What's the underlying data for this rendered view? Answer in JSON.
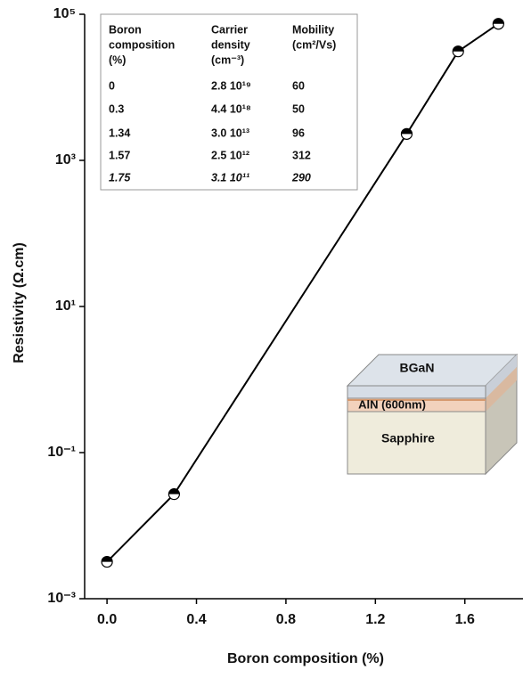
{
  "chart_data": {
    "type": "line",
    "x_label": "Boron composition (%)",
    "y_label": "Resistivity (Ω.cm)",
    "x": [
      0.0,
      0.3,
      1.34,
      1.57,
      1.75
    ],
    "values": [
      0.0032,
      0.027,
      2300,
      31000,
      74000
    ],
    "color": "#000000",
    "log_y": true,
    "xlim": [
      -0.1,
      1.86
    ],
    "ylim": [
      0.001,
      100000
    ],
    "xticks": [
      {
        "value": 0,
        "label": "0.0"
      },
      0.4,
      0.8,
      1.2,
      1.6
    ],
    "yticks": [
      {
        "value": 0.001,
        "label": "10⁻³"
      },
      {
        "value": 0.1,
        "label": "10⁻¹"
      },
      {
        "value": 10,
        "label": "10¹"
      },
      {
        "value": 1000,
        "label": "10³"
      },
      {
        "value": 100000,
        "label": "10⁵"
      }
    ],
    "table": {
      "header": [
        [
          "Boron",
          "composition",
          "(%)"
        ],
        [
          "Carrier",
          "density",
          "(cm⁻³)"
        ],
        [
          "Mobility",
          "(cm²/Vs)"
        ]
      ],
      "rows": [
        [
          "0",
          "2.8 10¹⁹",
          "60"
        ],
        [
          "0.3",
          "4.4 10¹⁸",
          "50"
        ],
        [
          "1.34",
          "3.0 10¹³",
          "96"
        ],
        [
          "1.57",
          "2.5 10¹²",
          "312"
        ],
        [
          "1.75",
          "3.1 10¹¹",
          "290"
        ]
      ]
    },
    "layers": [
      "BGaN",
      "AlN (600nm)",
      "Sapphire"
    ]
  }
}
